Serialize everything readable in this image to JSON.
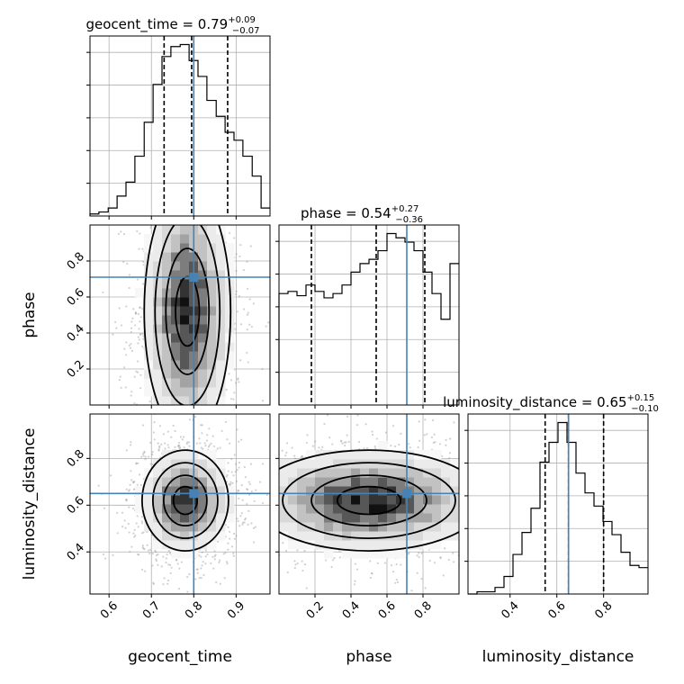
{
  "chart_data": {
    "type": "corner",
    "params": [
      "geocent_time",
      "phase",
      "luminosity_distance"
    ],
    "axis_labels": [
      "geocent_time",
      "phase",
      "luminosity_distance"
    ],
    "ranges": [
      [
        0.555,
        0.98
      ],
      [
        0.0,
        1.0
      ],
      [
        0.22,
        0.99
      ]
    ],
    "ticks": [
      [
        0.6,
        0.7,
        0.8,
        0.9
      ],
      [
        0.2,
        0.4,
        0.6,
        0.8
      ],
      [
        0.4,
        0.6,
        0.8
      ]
    ],
    "truths": [
      0.8,
      0.71,
      0.65
    ],
    "truth_color": "#4682b4",
    "titles": [
      {
        "param": "geocent_time",
        "median": "0.79",
        "plus": "+0.09",
        "minus": "−0.07"
      },
      {
        "param": "phase",
        "median": "0.54",
        "plus": "+0.27",
        "minus": "−0.36"
      },
      {
        "param": "luminosity_distance",
        "median": "0.65",
        "plus": "+0.15",
        "minus": "−0.10"
      }
    ],
    "quantiles": [
      [
        0.73,
        0.795,
        0.88
      ],
      [
        0.18,
        0.54,
        0.81
      ],
      [
        0.55,
        0.65,
        0.8
      ]
    ],
    "histograms": [
      {
        "bin_edges": [
          0.555,
          0.576,
          0.598,
          0.619,
          0.64,
          0.661,
          0.683,
          0.704,
          0.725,
          0.746,
          0.768,
          0.789,
          0.81,
          0.831,
          0.853,
          0.874,
          0.895,
          0.916,
          0.938,
          0.959,
          0.98
        ],
        "counts": [
          1,
          2,
          4,
          10,
          17,
          30,
          47,
          66,
          80,
          85,
          86,
          78,
          70,
          58,
          50,
          42,
          38,
          30,
          20,
          4
        ]
      },
      {
        "bin_edges": [
          0.0,
          0.05,
          0.1,
          0.15,
          0.2,
          0.25,
          0.3,
          0.35,
          0.4,
          0.45,
          0.5,
          0.55,
          0.6,
          0.65,
          0.7,
          0.75,
          0.8,
          0.85,
          0.9,
          0.95,
          1.0
        ],
        "counts": [
          52,
          53,
          51,
          56,
          53,
          50,
          52,
          56,
          62,
          66,
          68,
          72,
          80,
          78,
          76,
          72,
          62,
          52,
          40,
          66
        ]
      },
      {
        "bin_edges": [
          0.22,
          0.2585,
          0.297,
          0.3355,
          0.374,
          0.4125,
          0.451,
          0.4895,
          0.528,
          0.5665,
          0.605,
          0.6435,
          0.682,
          0.7205,
          0.759,
          0.7975,
          0.836,
          0.8745,
          0.913,
          0.9515,
          0.99
        ],
        "counts": [
          0,
          1,
          1,
          3,
          8,
          18,
          28,
          39,
          60,
          69,
          78,
          69,
          55,
          46,
          40,
          33,
          27,
          19,
          13,
          12
        ]
      }
    ],
    "posteriors_2d": [
      {
        "x": "geocent_time",
        "y": "phase",
        "peak": [
          0.785,
          0.52
        ],
        "levels": [
          0.39,
          0.86,
          0.99
        ]
      },
      {
        "x": "geocent_time",
        "y": "luminosity_distance",
        "peak": [
          0.78,
          0.62
        ],
        "levels": [
          0.39,
          0.86,
          0.99
        ]
      },
      {
        "x": "phase",
        "y": "luminosity_distance",
        "peak": [
          0.5,
          0.62
        ],
        "levels": [
          0.39,
          0.86,
          0.99
        ]
      }
    ],
    "grid": true
  }
}
